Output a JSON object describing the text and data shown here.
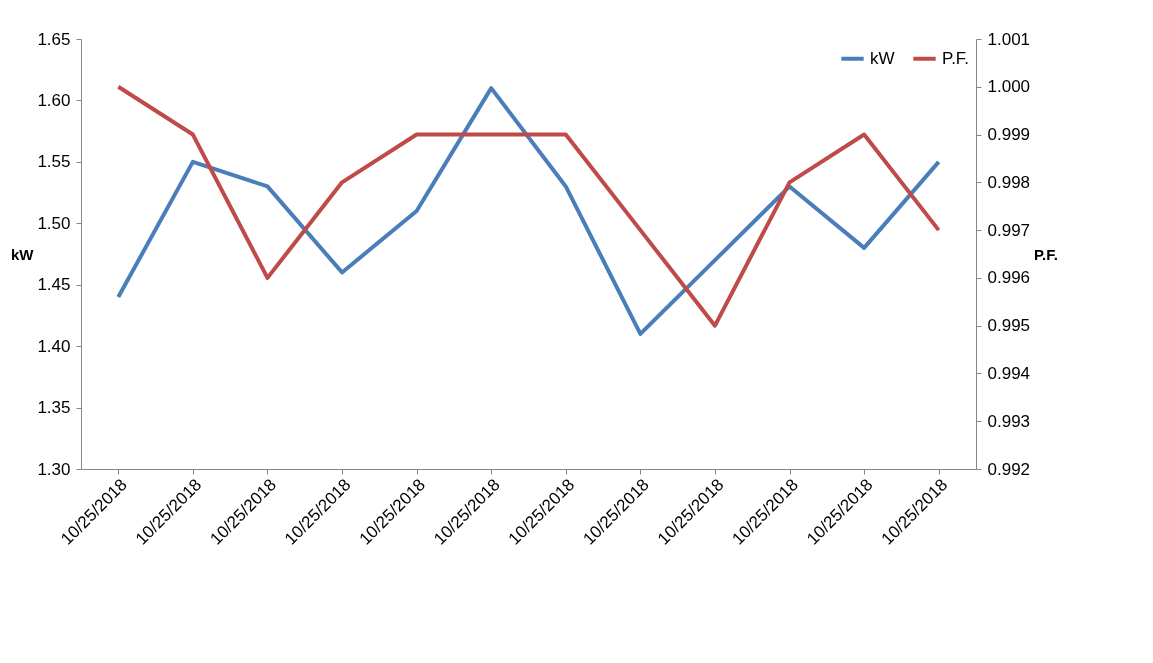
{
  "chart_data": {
    "type": "line",
    "ylabel": "kW",
    "y2label": "P.F.",
    "categories": [
      "10/25/2018",
      "10/25/2018",
      "10/25/2018",
      "10/25/2018",
      "10/25/2018",
      "10/25/2018",
      "10/25/2018",
      "10/25/2018",
      "10/25/2018",
      "10/25/2018",
      "10/25/2018",
      "10/25/2018"
    ],
    "series": [
      {
        "name": "kW",
        "color": "#4a7ebb",
        "values": [
          1.44,
          1.55,
          1.53,
          1.46,
          1.51,
          1.61,
          1.53,
          1.41,
          1.47,
          1.53,
          1.48,
          1.55
        ]
      },
      {
        "name": "P.F.",
        "color": "#be4b48",
        "axis": "y2",
        "values": [
          1.0,
          0.999,
          0.996,
          0.998,
          0.999,
          0.999,
          0.999,
          0.997,
          0.995,
          0.998,
          0.999,
          0.997
        ]
      }
    ],
    "ylim": [
      1.3,
      1.65
    ],
    "yticks": [
      {
        "value": 1.3,
        "label": "1.30"
      },
      1.35,
      {
        "value": 1.4,
        "label": "1.40"
      },
      1.45,
      {
        "value": 1.5,
        "label": "1.50"
      },
      1.55,
      {
        "value": 1.6,
        "label": "1.60"
      },
      1.65
    ],
    "y2lim": [
      0.992,
      1.001
    ],
    "y2ticks": [
      0.992,
      0.993,
      0.994,
      0.995,
      0.996,
      0.997,
      0.998,
      0.999,
      {
        "value": 1,
        "label": "1.000"
      },
      1.001
    ],
    "grid": false,
    "legend": "top right",
    "marker": "none",
    "line_style": "solid"
  }
}
